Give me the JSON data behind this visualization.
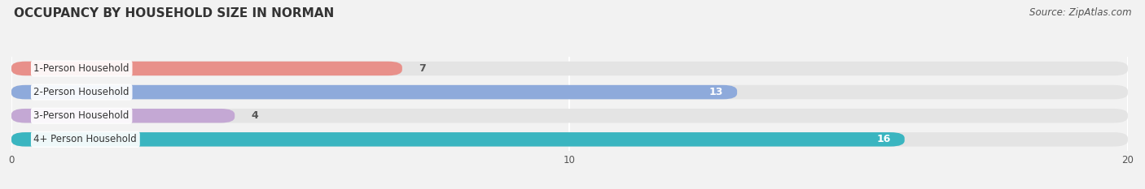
{
  "title": "OCCUPANCY BY HOUSEHOLD SIZE IN NORMAN",
  "source": "Source: ZipAtlas.com",
  "categories": [
    "1-Person Household",
    "2-Person Household",
    "3-Person Household",
    "4+ Person Household"
  ],
  "values": [
    7,
    13,
    4,
    16
  ],
  "bar_colors": [
    "#e8908a",
    "#8eaadb",
    "#c4a8d4",
    "#3ab5c0"
  ],
  "value_label_colors": [
    "#555555",
    "#ffffff",
    "#555555",
    "#ffffff"
  ],
  "xlim": [
    0,
    20
  ],
  "xticks": [
    0,
    10,
    20
  ],
  "background_color": "#f2f2f2",
  "bar_bg_color": "#e4e4e4",
  "title_fontsize": 11,
  "source_fontsize": 8.5,
  "label_fontsize": 8.5,
  "value_fontsize": 9,
  "bar_height": 0.6,
  "figsize": [
    14.06,
    2.33
  ]
}
